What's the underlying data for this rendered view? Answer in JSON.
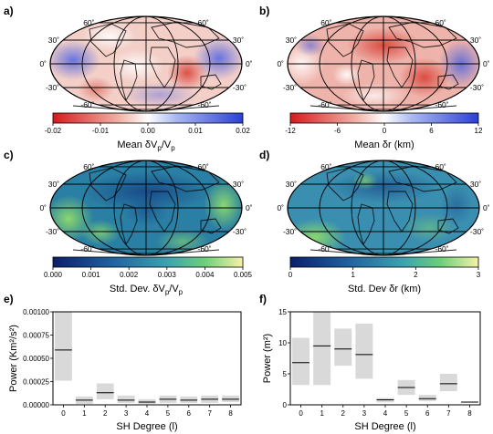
{
  "panels": {
    "a": "a)",
    "b": "b)",
    "c": "c)",
    "d": "d)",
    "e": "e)",
    "f": "f)"
  },
  "lat_labels": [
    "60˚",
    "30˚",
    "0˚",
    "-30˚",
    "-60˚"
  ],
  "colorbars": {
    "a": {
      "ticks": [
        "-0.02",
        "-0.01",
        "0.00",
        "0.01",
        "0.02"
      ],
      "label_main": "Mean δV",
      "label_sub": "p",
      "label_mid": "/V",
      "label_sub2": "p"
    },
    "b": {
      "ticks": [
        "-12",
        "-6",
        "0",
        "6",
        "12"
      ],
      "label": "Mean δr (km)"
    },
    "c": {
      "ticks": [
        "0.000",
        "0.001",
        "0.002",
        "0.003",
        "0.004",
        "0.005"
      ],
      "label_main": "Std. Dev. δV",
      "label_sub": "p",
      "label_mid": "/V",
      "label_sub2": "p"
    },
    "d": {
      "ticks": [
        "0",
        "1",
        "2",
        "3"
      ],
      "label": "Std. Dev δr (km)"
    }
  },
  "colors": {
    "red": "#d7191c",
    "white": "#ffffff",
    "blue": "#2b3fd6",
    "viridis_low": "#0a1f6b",
    "viridis_high": "#f7f2a8",
    "box": "#d9d9d9"
  },
  "chart_data": [
    {
      "type": "bar",
      "title": "",
      "xlabel": "SH Degree (l)",
      "ylabel": "Power (Km²/s²)",
      "ylim": [
        0,
        0.001
      ],
      "yticks": [
        "0.00000",
        "0.00025",
        "0.00050",
        "0.00075",
        "0.00100"
      ],
      "categories": [
        "0",
        "1",
        "2",
        "3",
        "4",
        "5",
        "6",
        "7",
        "8"
      ],
      "lower": [
        0.00026,
        1e-05,
        6e-05,
        2e-05,
        1e-05,
        2e-05,
        2e-05,
        2e-05,
        3e-05
      ],
      "upper": [
        0.001,
        9e-05,
        0.00023,
        0.0001,
        6e-05,
        0.0001,
        9e-05,
        0.0001,
        0.0001
      ],
      "median": [
        0.00059,
        5e-05,
        0.00013,
        5e-05,
        3e-05,
        6e-05,
        5e-05,
        6e-05,
        6e-05
      ]
    },
    {
      "type": "bar",
      "title": "",
      "xlabel": "SH Degree (l)",
      "ylabel": "Power (m²)",
      "ylim": [
        0,
        15
      ],
      "yticks": [
        "0",
        "5",
        "10",
        "15"
      ],
      "categories": [
        "0",
        "1",
        "2",
        "3",
        "4",
        "5",
        "6",
        "7",
        "8"
      ],
      "lower": [
        3.2,
        3.2,
        6.3,
        4.2,
        0.4,
        1.6,
        0.6,
        2.2,
        0.4
      ],
      "upper": [
        10.8,
        15,
        12.3,
        13.1,
        1.1,
        4.0,
        1.6,
        5.0,
        0.5
      ],
      "median": [
        6.8,
        9.5,
        9.0,
        8.1,
        0.8,
        2.8,
        1.0,
        3.4,
        0.45
      ]
    }
  ]
}
